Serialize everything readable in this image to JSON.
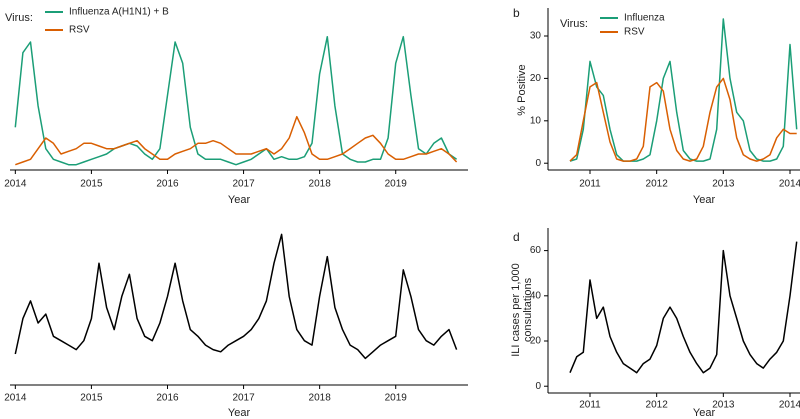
{
  "chart_data": [
    {
      "type": "line",
      "legend_title": "Virus:",
      "xlabel": "Year",
      "x": [
        2014.0,
        2014.1,
        2014.2,
        2014.3,
        2014.4,
        2014.5,
        2014.6,
        2014.7,
        2014.8,
        2014.9,
        2015.0,
        2015.1,
        2015.2,
        2015.3,
        2015.4,
        2015.5,
        2015.6,
        2015.7,
        2015.8,
        2015.9,
        2016.0,
        2016.1,
        2016.2,
        2016.3,
        2016.4,
        2016.5,
        2016.6,
        2016.7,
        2016.8,
        2016.9,
        2017.0,
        2017.1,
        2017.2,
        2017.3,
        2017.4,
        2017.5,
        2017.6,
        2017.7,
        2017.8,
        2017.9,
        2018.0,
        2018.1,
        2018.2,
        2018.3,
        2018.4,
        2018.5,
        2018.6,
        2018.7,
        2018.8,
        2018.9,
        2019.0,
        2019.1,
        2019.2,
        2019.3,
        2019.4,
        2019.5,
        2019.6,
        2019.7,
        2019.8
      ],
      "series": [
        {
          "name": "Influenza A(H1N1) + B",
          "color": "#1b9e77",
          "values": [
            8,
            22,
            24,
            12,
            4,
            2,
            1.5,
            1,
            1,
            1.5,
            2,
            2.5,
            3,
            4,
            4.5,
            5,
            4.5,
            3,
            2,
            4,
            14,
            24,
            20,
            8,
            3,
            2,
            2,
            2,
            1.5,
            1,
            1.5,
            2,
            3,
            4,
            2,
            2.5,
            2,
            2,
            2.5,
            5,
            18,
            25,
            12,
            3,
            2,
            1.5,
            1.5,
            2,
            2,
            6,
            20,
            25,
            14,
            4,
            3,
            5,
            6,
            3,
            2
          ]
        },
        {
          "name": "RSV",
          "color": "#d95f02",
          "values": [
            1,
            1.5,
            2,
            4,
            6,
            5,
            3,
            3.5,
            4,
            5,
            5,
            4.5,
            4,
            4,
            4.5,
            5,
            5.5,
            4,
            3,
            2,
            2,
            3,
            3.5,
            4,
            5,
            5,
            5.5,
            5,
            4,
            3,
            3,
            3,
            3.5,
            4,
            3,
            4,
            6,
            10,
            7,
            3,
            2,
            2,
            2.5,
            3,
            4,
            5,
            6,
            6.5,
            5,
            3,
            2,
            2,
            2.5,
            3,
            3,
            3.5,
            4,
            3,
            1.5
          ]
        }
      ],
      "xlim": [
        2013.93,
        2019.95
      ],
      "ylim": [
        0,
        30
      ],
      "xticks": [
        2014,
        2015,
        2016,
        2017,
        2018,
        2019
      ]
    },
    {
      "type": "line",
      "panel": "b",
      "legend_title": "Virus:",
      "xlabel": "Year",
      "ylabel": [
        "% Positive"
      ],
      "x": [
        2010.7,
        2010.8,
        2010.9,
        2011.0,
        2011.1,
        2011.2,
        2011.3,
        2011.4,
        2011.5,
        2011.6,
        2011.7,
        2011.8,
        2011.9,
        2012.0,
        2012.1,
        2012.2,
        2012.3,
        2012.4,
        2012.5,
        2012.6,
        2012.7,
        2012.8,
        2012.9,
        2013.0,
        2013.1,
        2013.2,
        2013.3,
        2013.4,
        2013.5,
        2013.6,
        2013.7,
        2013.8,
        2013.9,
        2014.0,
        2014.1
      ],
      "series": [
        {
          "name": "Influenza",
          "color": "#1b9e77",
          "values": [
            0.5,
            1,
            8,
            24,
            18,
            16,
            8,
            2,
            0.5,
            0.5,
            0.5,
            1,
            2,
            10,
            20,
            24,
            12,
            3,
            1,
            0.5,
            0.5,
            1,
            8,
            34,
            20,
            12,
            10,
            3,
            1,
            0.5,
            0.5,
            1,
            4,
            28,
            8
          ]
        },
        {
          "name": "RSV",
          "color": "#d95f02",
          "values": [
            0.5,
            2,
            10,
            18,
            19,
            12,
            5,
            1,
            0.5,
            0.5,
            1,
            4,
            18,
            19,
            17,
            8,
            3,
            1,
            0.5,
            1,
            4,
            12,
            18,
            20,
            15,
            6,
            2,
            1,
            0.5,
            1,
            2,
            6,
            8,
            7,
            7
          ]
        }
      ],
      "xlim": [
        2010.37,
        2014.15
      ],
      "ylim": [
        -1.6,
        36.6
      ],
      "xticks": [
        2011,
        2012,
        2013,
        2014
      ],
      "yticks": [
        0,
        10,
        20,
        30
      ]
    },
    {
      "type": "line",
      "xlabel": "Year",
      "x": [
        2014.0,
        2014.1,
        2014.2,
        2014.3,
        2014.4,
        2014.5,
        2014.6,
        2014.7,
        2014.8,
        2014.9,
        2015.0,
        2015.1,
        2015.2,
        2015.3,
        2015.4,
        2015.5,
        2015.6,
        2015.7,
        2015.8,
        2015.9,
        2016.0,
        2016.1,
        2016.2,
        2016.3,
        2016.4,
        2016.5,
        2016.6,
        2016.7,
        2016.8,
        2016.9,
        2017.0,
        2017.1,
        2017.2,
        2017.3,
        2017.4,
        2017.5,
        2017.6,
        2017.7,
        2017.8,
        2017.9,
        2018.0,
        2018.1,
        2018.2,
        2018.3,
        2018.4,
        2018.5,
        2018.6,
        2018.7,
        2018.8,
        2018.9,
        2019.0,
        2019.1,
        2019.2,
        2019.3,
        2019.4,
        2019.5,
        2019.6,
        2019.7,
        2019.8
      ],
      "series": [
        {
          "color": "#000000",
          "values": [
            14,
            30,
            38,
            28,
            32,
            22,
            20,
            18,
            16,
            20,
            30,
            55,
            35,
            25,
            40,
            50,
            30,
            22,
            20,
            28,
            40,
            55,
            38,
            25,
            22,
            18,
            16,
            15,
            18,
            20,
            22,
            25,
            30,
            38,
            55,
            68,
            40,
            25,
            20,
            18,
            40,
            58,
            35,
            25,
            18,
            16,
            12,
            15,
            18,
            20,
            22,
            52,
            40,
            25,
            20,
            18,
            22,
            25,
            16
          ]
        }
      ],
      "xlim": [
        2013.93,
        2019.95
      ],
      "ylim": [
        0,
        70
      ],
      "xticks": [
        2014,
        2015,
        2016,
        2017,
        2018,
        2019
      ]
    },
    {
      "type": "line",
      "panel": "d",
      "xlabel": "Year",
      "ylabel": [
        "ILI cases per 1,000",
        "consultations"
      ],
      "x": [
        2010.7,
        2010.8,
        2010.9,
        2011.0,
        2011.1,
        2011.2,
        2011.3,
        2011.4,
        2011.5,
        2011.6,
        2011.7,
        2011.8,
        2011.9,
        2012.0,
        2012.1,
        2012.2,
        2012.3,
        2012.4,
        2012.5,
        2012.6,
        2012.7,
        2012.8,
        2012.9,
        2013.0,
        2013.1,
        2013.2,
        2013.3,
        2013.4,
        2013.5,
        2013.6,
        2013.7,
        2013.8,
        2013.9,
        2014.0,
        2014.1
      ],
      "series": [
        {
          "color": "#000000",
          "values": [
            6,
            13,
            15,
            47,
            30,
            35,
            22,
            15,
            10,
            8,
            6,
            10,
            12,
            18,
            30,
            35,
            30,
            22,
            15,
            10,
            6,
            8,
            14,
            60,
            40,
            30,
            20,
            14,
            10,
            8,
            12,
            15,
            20,
            40,
            64
          ]
        }
      ],
      "xlim": [
        2010.37,
        2014.15
      ],
      "ylim": [
        -3,
        70
      ],
      "xticks": [
        2011,
        2012,
        2013,
        2014
      ],
      "yticks": [
        0,
        20,
        40,
        60
      ]
    }
  ]
}
